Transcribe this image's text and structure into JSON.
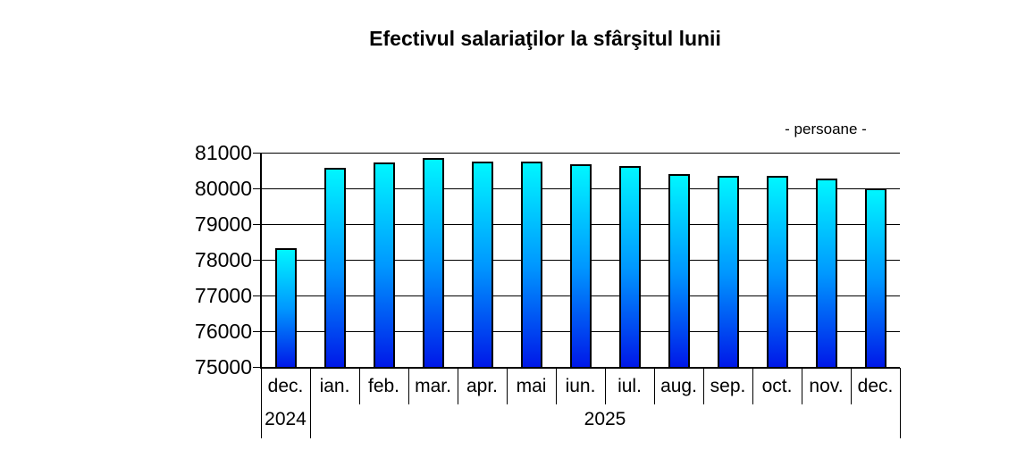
{
  "chart_data": {
    "type": "bar",
    "title": "Efectivul salariaţilor la sfârşitul lunii",
    "units_label": "- persoane -",
    "categories": [
      "dec.",
      "ian.",
      "feb.",
      "mar.",
      "apr.",
      "mai",
      "iun.",
      "iul.",
      "aug.",
      "sep.",
      "oct.",
      "nov.",
      "dec."
    ],
    "year_groups": [
      {
        "label": "2024",
        "span": 1
      },
      {
        "label": "2025",
        "span": 12
      }
    ],
    "values": [
      78330,
      80580,
      80720,
      80850,
      80750,
      80760,
      80670,
      80620,
      80410,
      80360,
      80340,
      80270,
      80000
    ],
    "ylabel": "",
    "xlabel": "",
    "ylim": [
      75000,
      81000
    ],
    "ytick_step": 1000,
    "ytick_labels": [
      "81000",
      "80000",
      "79000",
      "78000",
      "77000",
      "76000",
      "75000"
    ],
    "grid": true,
    "legend_position": "none",
    "colors": {
      "bar_gradient_top": "#00f6ff",
      "bar_gradient_bottom": "#0018e8",
      "bar_border": "#000000",
      "axis": "#000000",
      "grid": "#000000",
      "text": "#000000",
      "background": "#ffffff"
    }
  }
}
